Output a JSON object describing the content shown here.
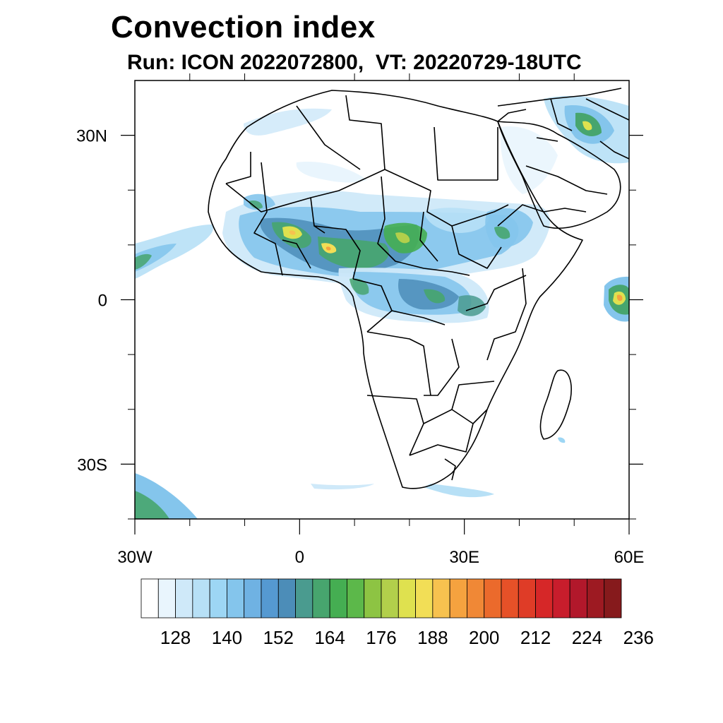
{
  "title": "Convection index",
  "subtitle": "Run: ICON 2022072800,  VT: 20220729-18UTC",
  "map": {
    "region": "Africa",
    "projection": "lat-lon",
    "lon_range": [
      -30,
      60
    ],
    "lat_range": [
      -40,
      40
    ],
    "x_tick_labels": [
      {
        "lon": -30,
        "text": "30W"
      },
      {
        "lon": 0,
        "text": "0"
      },
      {
        "lon": 30,
        "text": "30E"
      },
      {
        "lon": 60,
        "text": "60E"
      }
    ],
    "y_tick_labels": [
      {
        "lat": 30,
        "text": "30N"
      },
      {
        "lat": 0,
        "text": "0"
      },
      {
        "lat": -30,
        "text": "30S"
      }
    ],
    "minor_lon_ticks": [
      -20,
      -10,
      10,
      20,
      40,
      50
    ],
    "minor_lat_ticks": [
      20,
      10,
      -10,
      -20,
      -40
    ]
  },
  "colorbar": {
    "colors": [
      "#ffffff",
      "#e9f5fd",
      "#cfe9f9",
      "#b7e0f6",
      "#9dd6f4",
      "#84c5ec",
      "#6fb2e3",
      "#5599d1",
      "#4c8db8",
      "#4a9b8f",
      "#47a56e",
      "#45ae52",
      "#5cb84a",
      "#8dc443",
      "#b2cf4b",
      "#dfe14f",
      "#f2de56",
      "#f7c24f",
      "#f5a23f",
      "#f08836",
      "#eb6a2c",
      "#e65128",
      "#df3c27",
      "#d62728",
      "#c81d2c",
      "#b2182b",
      "#9d1a22",
      "#861a1c"
    ],
    "labels": [
      "128",
      "140",
      "152",
      "164",
      "176",
      "188",
      "200",
      "212",
      "224",
      "236"
    ],
    "label_start_boundary": 2,
    "label_every": 3
  },
  "chart_data": {
    "type": "heatmap",
    "title": "Convection index",
    "subtitle": "Run: ICON 2022072800,  VT: 20220729-18UTC",
    "xlabel": "",
    "ylabel": "",
    "xlim": [
      -30,
      60
    ],
    "ylim": [
      -40,
      40
    ],
    "variable": "convection index",
    "run": "ICON 2022072800",
    "valid_time": "20220729-18UTC",
    "colorbar_ticks": [
      128,
      140,
      152,
      164,
      176,
      188,
      200,
      212,
      224,
      236
    ],
    "features": [
      {
        "name": "sahel-band",
        "lon": [
          -13,
          40
        ],
        "lat": [
          5,
          17
        ],
        "max_value": 200
      },
      {
        "name": "central-africa",
        "lon": [
          10,
          35
        ],
        "lat": [
          -5,
          5
        ],
        "max_value": 170
      },
      {
        "name": "atlantic-tropical-plume",
        "lon": [
          -30,
          -16
        ],
        "lat": [
          5,
          12
        ],
        "max_value": 160
      },
      {
        "name": "indian-ocean-cell",
        "lon": [
          55,
          60
        ],
        "lat": [
          -3,
          4
        ],
        "max_value": 200
      },
      {
        "name": "middle-east-cells",
        "lon": [
          48,
          60
        ],
        "lat": [
          25,
          36
        ],
        "max_value": 190
      },
      {
        "name": "south-atlantic-southwest",
        "lon": [
          -30,
          -22
        ],
        "lat": [
          -40,
          -32
        ],
        "max_value": 170
      }
    ]
  }
}
